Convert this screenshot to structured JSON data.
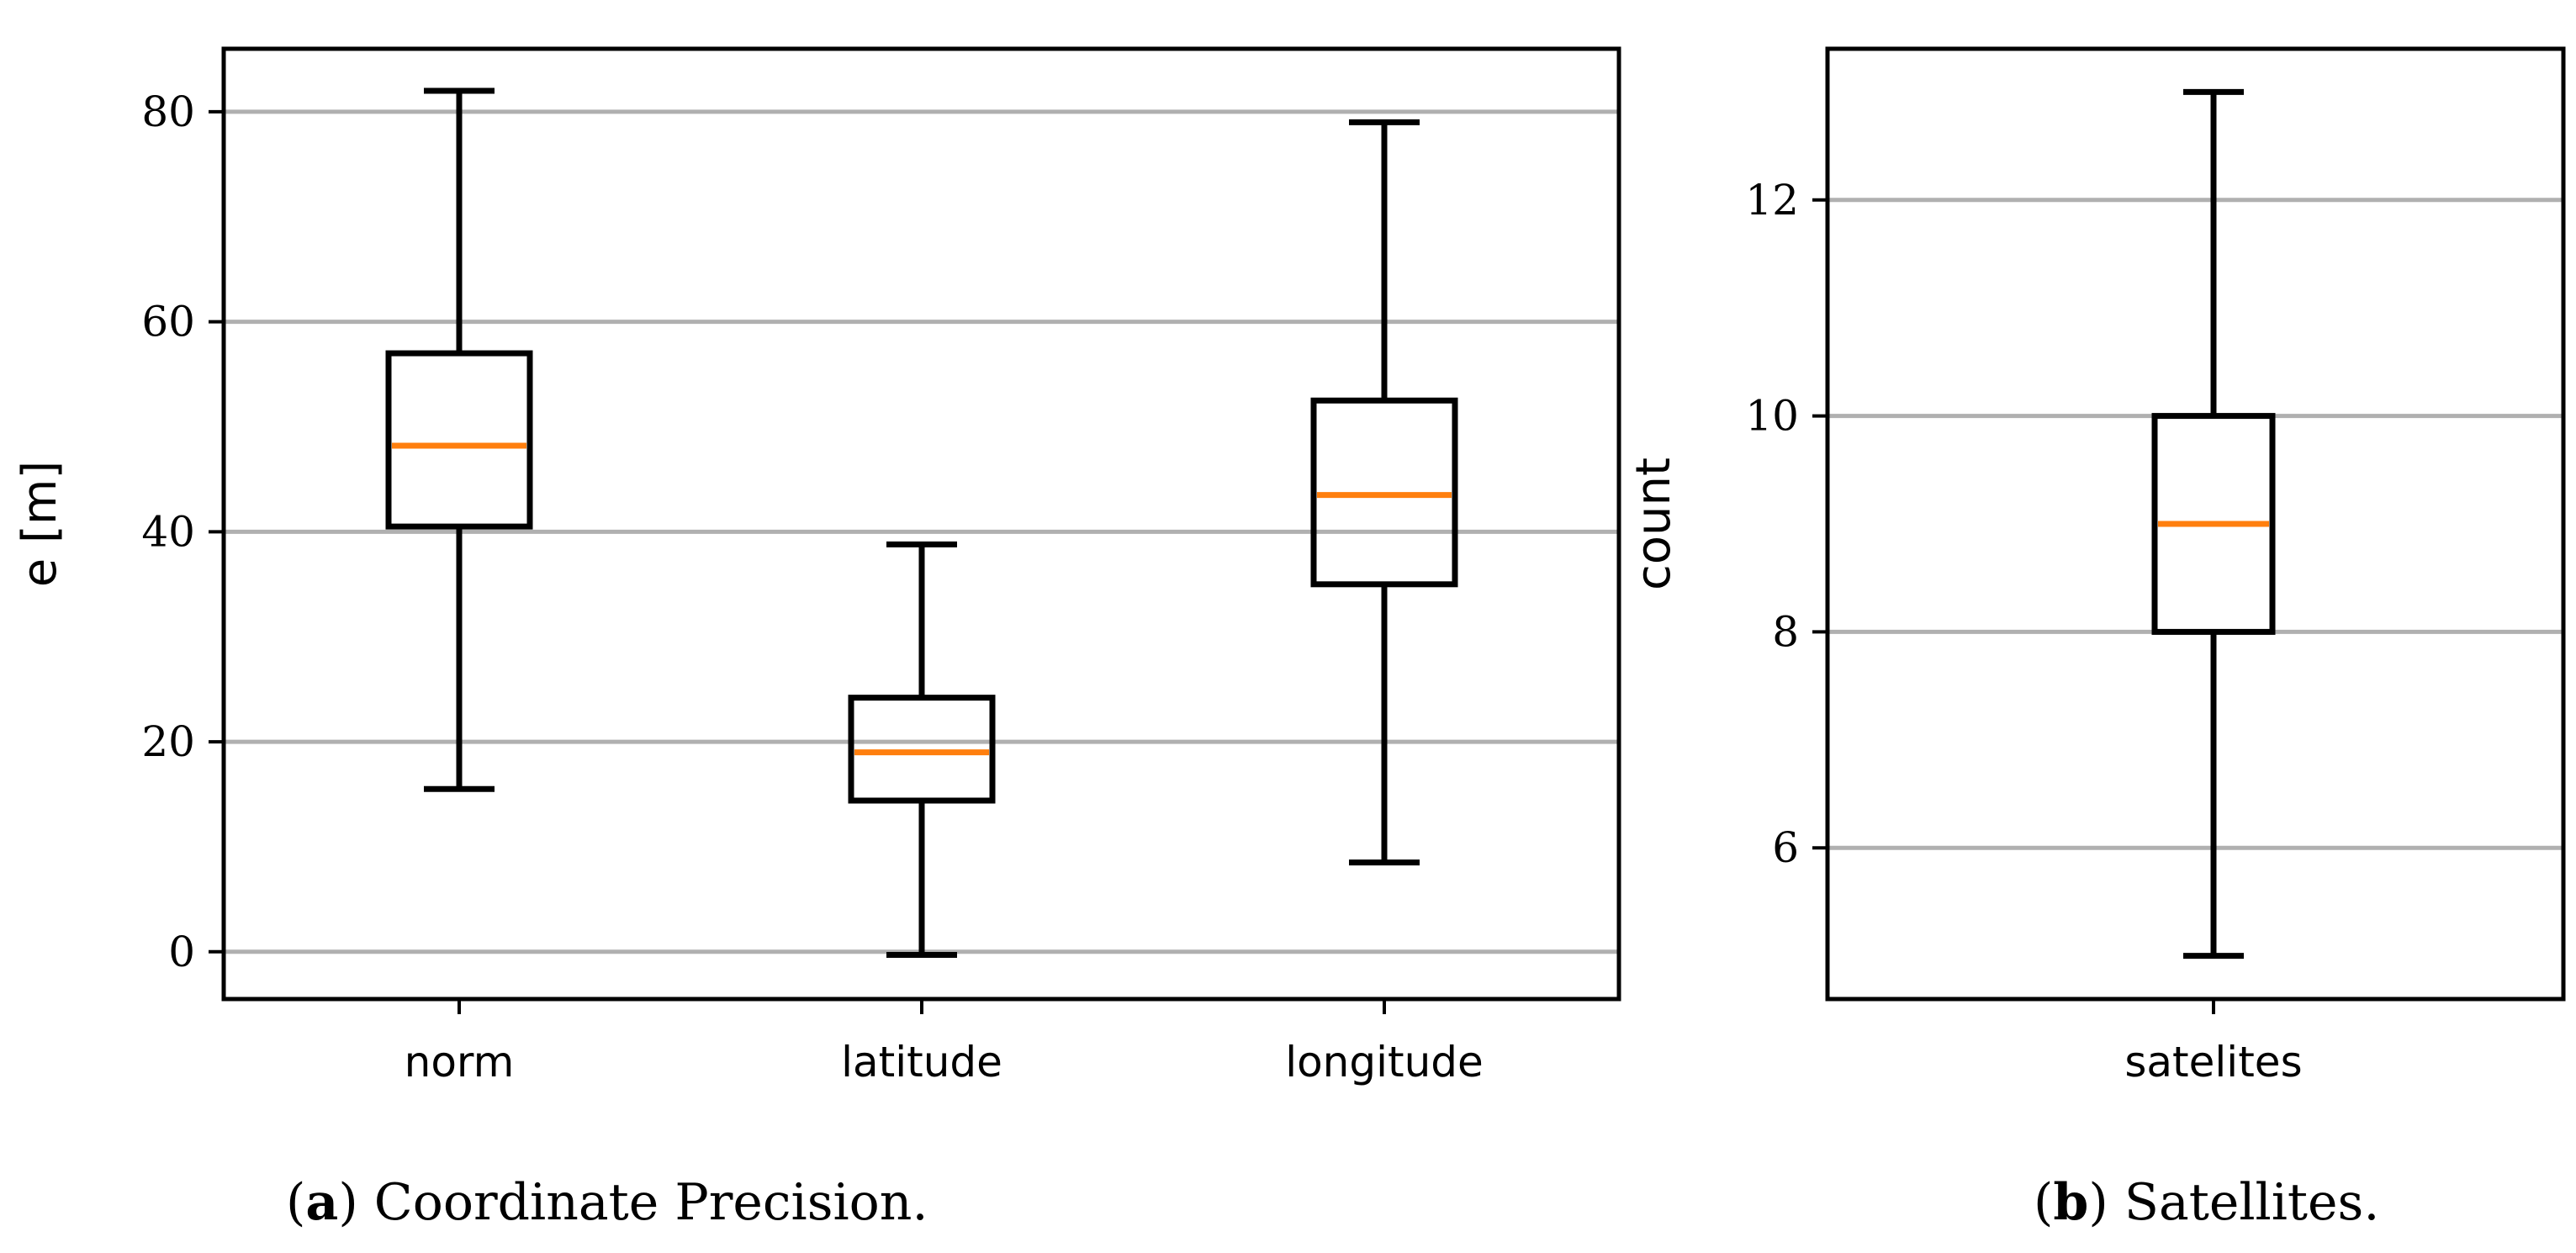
{
  "chart_data": [
    {
      "id": "a",
      "type": "box",
      "ylabel": "e [m]",
      "ylim": [
        -4.5,
        86
      ],
      "yticks": [
        0,
        20,
        40,
        60,
        80
      ],
      "grid": true,
      "colors": {
        "median": "#ff7f0e",
        "grid": "#b0b0b0",
        "box": "#000000"
      },
      "boxes": [
        {
          "label": "norm",
          "whislo": 15.5,
          "q1": 40.5,
          "med": 48.2,
          "q3": 57,
          "whishi": 82
        },
        {
          "label": "latitude",
          "whislo": -0.3,
          "q1": 14.4,
          "med": 19,
          "q3": 24.2,
          "whishi": 38.8
        },
        {
          "label": "longitude",
          "whislo": 8.5,
          "q1": 35,
          "med": 43.5,
          "q3": 52.5,
          "whishi": 79
        }
      ],
      "caption": {
        "letter": "a",
        "text": " Coordinate Precision."
      }
    },
    {
      "id": "b",
      "type": "box",
      "ylabel": "count",
      "ylim": [
        4.6,
        13.4
      ],
      "yticks": [
        6,
        8,
        10,
        12
      ],
      "grid": true,
      "colors": {
        "median": "#ff7f0e",
        "grid": "#b0b0b0",
        "box": "#000000"
      },
      "boxes": [
        {
          "label": "satelites",
          "whislo": 5,
          "q1": 8,
          "med": 9,
          "q3": 10,
          "whishi": 13
        }
      ],
      "caption": {
        "letter": "b",
        "text": " Satellites."
      }
    }
  ]
}
